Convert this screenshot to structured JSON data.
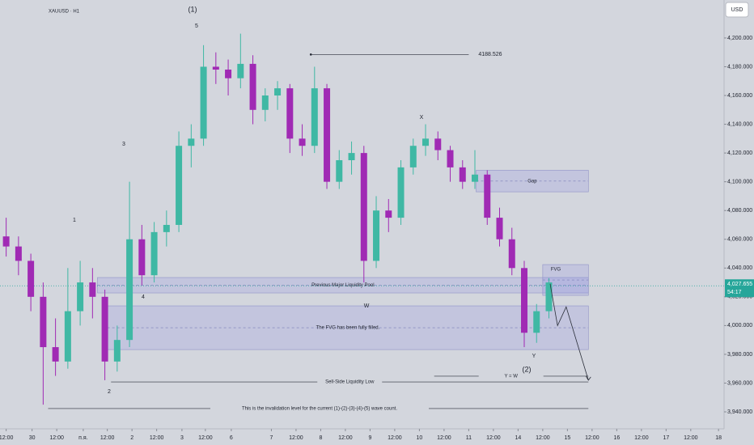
{
  "chart_data": {
    "type": "candlestick",
    "title": "XAUUSD · H1",
    "currency": "USD",
    "up_color": "#3fb8a4",
    "down_color": "#a02ab4",
    "open": [
      4062,
      4055,
      4045,
      4020,
      3985,
      3975,
      4010,
      4030,
      4020,
      3975,
      3990,
      4060,
      4035,
      4065,
      4070,
      4125,
      4130,
      4180,
      4178,
      4172,
      4182,
      4150,
      4160,
      4165,
      4130,
      4125,
      4165,
      4100,
      4115,
      4120,
      4045,
      4080,
      4075,
      4110,
      4125,
      4130,
      4122,
      4110,
      4100,
      4105,
      4075,
      4060,
      4040,
      3995,
      4010
    ],
    "high": [
      4075,
      4062,
      4050,
      4030,
      4005,
      4040,
      4045,
      4040,
      4025,
      4000,
      4100,
      4070,
      4072,
      4080,
      4135,
      4140,
      4195,
      4190,
      4185,
      4203,
      4188,
      4165,
      4170,
      4168,
      4140,
      4180,
      4168,
      4122,
      4128,
      4125,
      4090,
      4088,
      4115,
      4130,
      4140,
      4135,
      4125,
      4115,
      4122,
      4108,
      4082,
      4068,
      4045,
      4015,
      4033
    ],
    "low": [
      4048,
      4035,
      4010,
      3945,
      3965,
      3970,
      4000,
      4005,
      3962,
      3968,
      3985,
      4028,
      4030,
      4055,
      4065,
      4110,
      4125,
      4168,
      4160,
      4165,
      4140,
      4142,
      4150,
      4120,
      4118,
      4120,
      4095,
      4095,
      4105,
      4030,
      4040,
      4065,
      4070,
      4105,
      4118,
      4115,
      4100,
      4095,
      4095,
      4070,
      4055,
      4035,
      3985,
      3988,
      4005
    ],
    "close": [
      4055,
      4045,
      4020,
      3985,
      3975,
      4010,
      4030,
      4020,
      3975,
      3990,
      4060,
      4035,
      4065,
      4070,
      4125,
      4130,
      4180,
      4178,
      4172,
      4182,
      4150,
      4160,
      4165,
      4130,
      4125,
      4165,
      4100,
      4115,
      4120,
      4045,
      4080,
      4075,
      4110,
      4125,
      4130,
      4122,
      4110,
      4100,
      4105,
      4075,
      4060,
      4040,
      3995,
      4010,
      4030
    ],
    "xlim": [
      0,
      58.7
    ],
    "xticks": [
      {
        "value": 0.5,
        "label": "12:00"
      },
      {
        "value": 2.6,
        "label": "30"
      },
      {
        "value": 4.6,
        "label": "12:00"
      },
      {
        "value": 6.75,
        "label": "п.я."
      },
      {
        "value": 8.7,
        "label": "12:00"
      },
      {
        "value": 10.7,
        "label": "2"
      },
      {
        "value": 12.7,
        "label": "12:00"
      },
      {
        "value": 14.75,
        "label": "3"
      },
      {
        "value": 16.65,
        "label": "12:00"
      },
      {
        "value": 18.75,
        "label": "6"
      },
      {
        "value": 22,
        "label": "7"
      },
      {
        "value": 24,
        "label": "12:00"
      },
      {
        "value": 26,
        "label": "8"
      },
      {
        "value": 28,
        "label": "12:00"
      },
      {
        "value": 30,
        "label": "9"
      },
      {
        "value": 32,
        "label": "12:00"
      },
      {
        "value": 34,
        "label": "10"
      },
      {
        "value": 36,
        "label": "12:00"
      },
      {
        "value": 38,
        "label": "11"
      },
      {
        "value": 40,
        "label": "12:00"
      },
      {
        "value": 42,
        "label": "14"
      },
      {
        "value": 44,
        "label": "12:00"
      },
      {
        "value": 46,
        "label": "15"
      },
      {
        "value": 48,
        "label": "12:00"
      },
      {
        "value": 50,
        "label": "16"
      },
      {
        "value": 52,
        "label": "12:00"
      },
      {
        "value": 54,
        "label": "17"
      },
      {
        "value": 56,
        "label": "12:00"
      },
      {
        "value": 58.25,
        "label": "18"
      }
    ],
    "ylim": [
      3928.2,
      4226.4
    ],
    "yticks": [
      {
        "value": 4200,
        "label": "4,200.000"
      },
      {
        "value": 4180,
        "label": "4,180.000"
      },
      {
        "value": 4160,
        "label": "4,160.000"
      },
      {
        "value": 4140,
        "label": "4,140.000"
      },
      {
        "value": 4120,
        "label": "4,120.000"
      },
      {
        "value": 4100,
        "label": "4,100.000"
      },
      {
        "value": 4080,
        "label": "4,080.000"
      },
      {
        "value": 4060,
        "label": "4,060.000"
      },
      {
        "value": 4040,
        "label": "4,040.000"
      },
      {
        "value": 4020,
        "label": "4,020.000"
      },
      {
        "value": 4000,
        "label": "4,000.000"
      },
      {
        "value": 3980,
        "label": "3,980.000"
      },
      {
        "value": 3960,
        "label": "3,960.000"
      },
      {
        "value": 3940,
        "label": "3,940.000"
      }
    ],
    "grid": false,
    "last_price": {
      "value": 4027.655,
      "label": "4,027.655"
    },
    "countdown": "54:17",
    "zones": [
      {
        "label": "Gap",
        "top": 4108,
        "bottom": 4093,
        "start": 38.6,
        "end": 47.7
      },
      {
        "label": "Previous Major Liquidity Pool",
        "top": 4033.4,
        "bottom": 4022.7,
        "start": 7.9,
        "end": 47.7
      },
      {
        "label": "The FVG has been fully filled.",
        "top": 4013.7,
        "bottom": 3983.3,
        "start": 8.7,
        "end": 47.7
      },
      {
        "label": "FVG",
        "top": 4042.4,
        "bottom": 4021,
        "start": 44,
        "end": 47.7
      }
    ],
    "levels": [
      {
        "value": 4188.526,
        "start": 25.2,
        "end": 38
      },
      {
        "label": "Y = W",
        "value": 3964.8,
        "start": 35.2,
        "end": 47.7
      },
      {
        "label": "Sell-Side Liquidity Low",
        "value": 3960.8,
        "start": 9,
        "end": 47.7
      },
      {
        "label": "This is the invalidation level for the current (1)-(2)-(3)-(4)-(5) wave count.",
        "value": 3942.3,
        "start": 3.9,
        "end": 47.7
      }
    ],
    "projection": {
      "x": [
        44.6,
        45.2,
        45.9,
        47.7
      ],
      "y": [
        4029,
        4000,
        4013,
        3962
      ]
    },
    "annotations": [
      "(1)",
      "5",
      "X",
      "3",
      "1",
      "4",
      "W",
      "Y",
      "(2)",
      "2"
    ]
  }
}
